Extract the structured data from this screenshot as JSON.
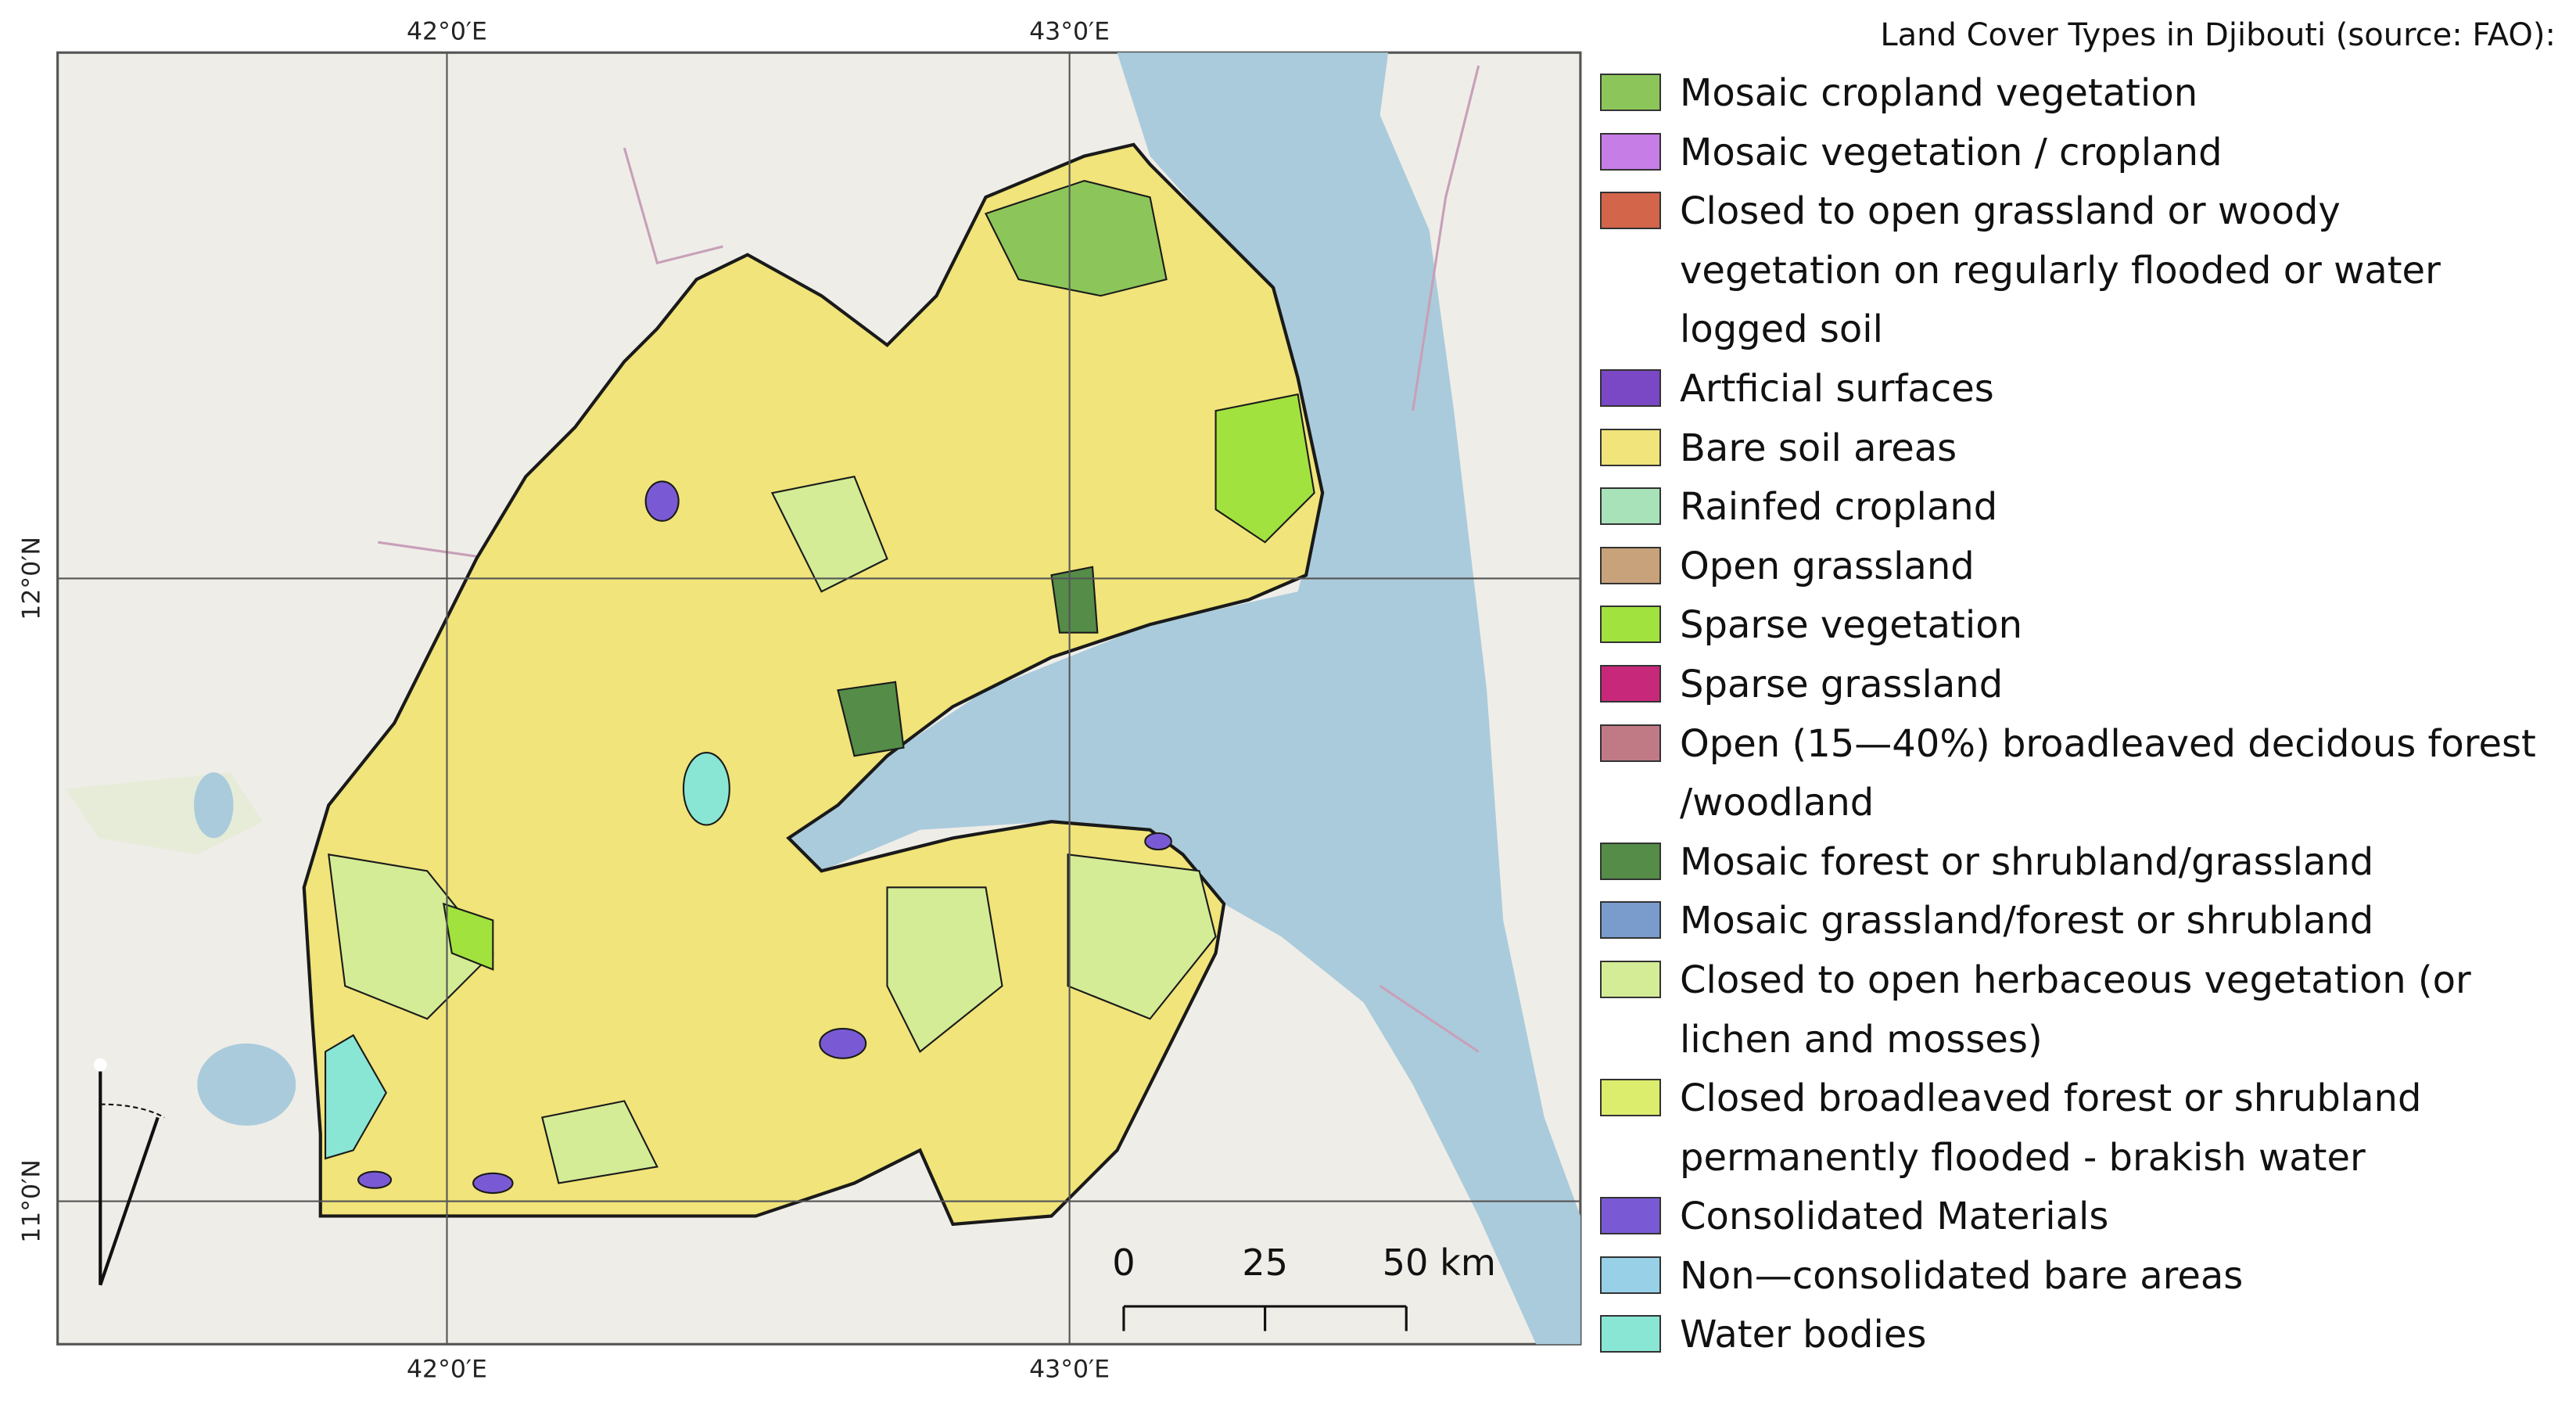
{
  "map": {
    "grid_labels": {
      "top": [
        "42°0′E",
        "43°0′E"
      ],
      "bottom": [
        "42°0′E",
        "43°0′E"
      ],
      "left": [
        "12°0′N",
        "11°0′N"
      ]
    },
    "scale_bar": {
      "labels": [
        "0",
        "25",
        "50 km"
      ]
    },
    "legend": {
      "title": "Land Cover Types in Djibouti (source: FAO):",
      "items": [
        {
          "label": "Mosaic cropland vegetation",
          "color": "#8cc65a"
        },
        {
          "label": "Mosaic vegetation / cropland",
          "color": "#c77de6"
        },
        {
          "label": "Closed to open grassland or woody vegetation on regularly flooded or water logged soil",
          "color": "#d2654a"
        },
        {
          "label": "Artficial surfaces",
          "color": "#7a48c4"
        },
        {
          "label": "Bare soil areas",
          "color": "#f0e47a"
        },
        {
          "label": "Rainfed cropland",
          "color": "#a8e2b8"
        },
        {
          "label": "Open grassland",
          "color": "#c8a27a"
        },
        {
          "label": "Sparse vegetation",
          "color": "#a2e23e"
        },
        {
          "label": "Sparse grassland",
          "color": "#c8287a"
        },
        {
          "label": "Open (15—40%) broadleaved decidous forest /woodland",
          "color": "#c07a86"
        },
        {
          "label": "Mosaic forest or shrubland/grassland",
          "color": "#548c48"
        },
        {
          "label": "Mosaic grassland/forest or shrubland",
          "color": "#7a9ccc"
        },
        {
          "label": "Closed to open herbaceous vegetation (or lichen and mosses)",
          "color": "#d4ec96"
        },
        {
          "label": "Closed broadleaved forest or shrubland permanently flooded - brakish water",
          "color": "#dcec6c"
        },
        {
          "label": "Consolidated Materials",
          "color": "#7a5ad4"
        },
        {
          "label": "Non—consolidated bare areas",
          "color": "#98d0e8"
        },
        {
          "label": "Water bodies",
          "color": "#8ae6d4"
        }
      ]
    }
  }
}
